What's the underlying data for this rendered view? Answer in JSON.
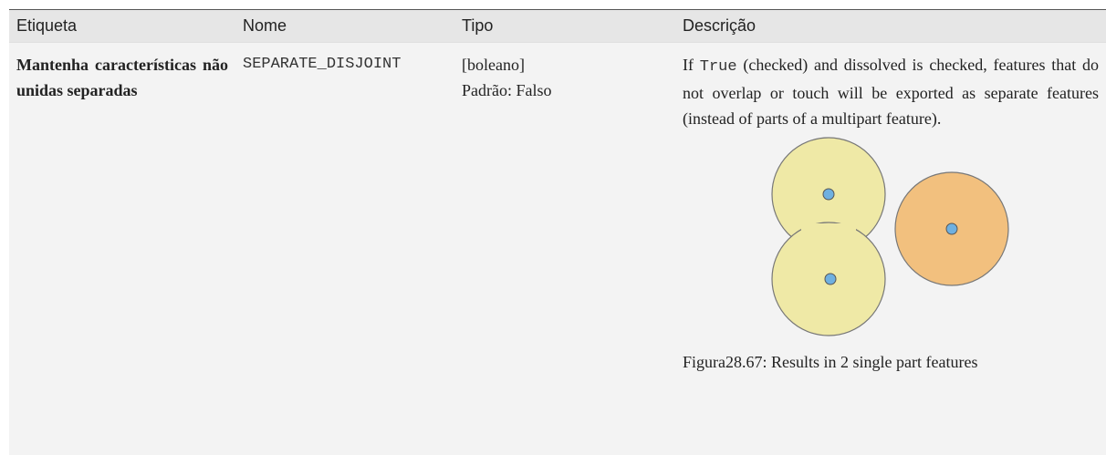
{
  "table": {
    "headers": [
      "Etiqueta",
      "Nome",
      "Tipo",
      "Descrição"
    ],
    "rows": [
      {
        "label": "Mantenha características não unidas separadas",
        "name": "SEPARATE_DISJOINT",
        "type": "[boleano]",
        "default": "Padrão: Falso",
        "description": [
          "If",
          "True",
          "(checked) and dissolved is checked, features that do not overlap or touch will be exported as separate features (instead of parts of a multipart feature)."
        ],
        "caption": "Figura28.67: Results in 2 single part features"
      }
    ]
  }
}
